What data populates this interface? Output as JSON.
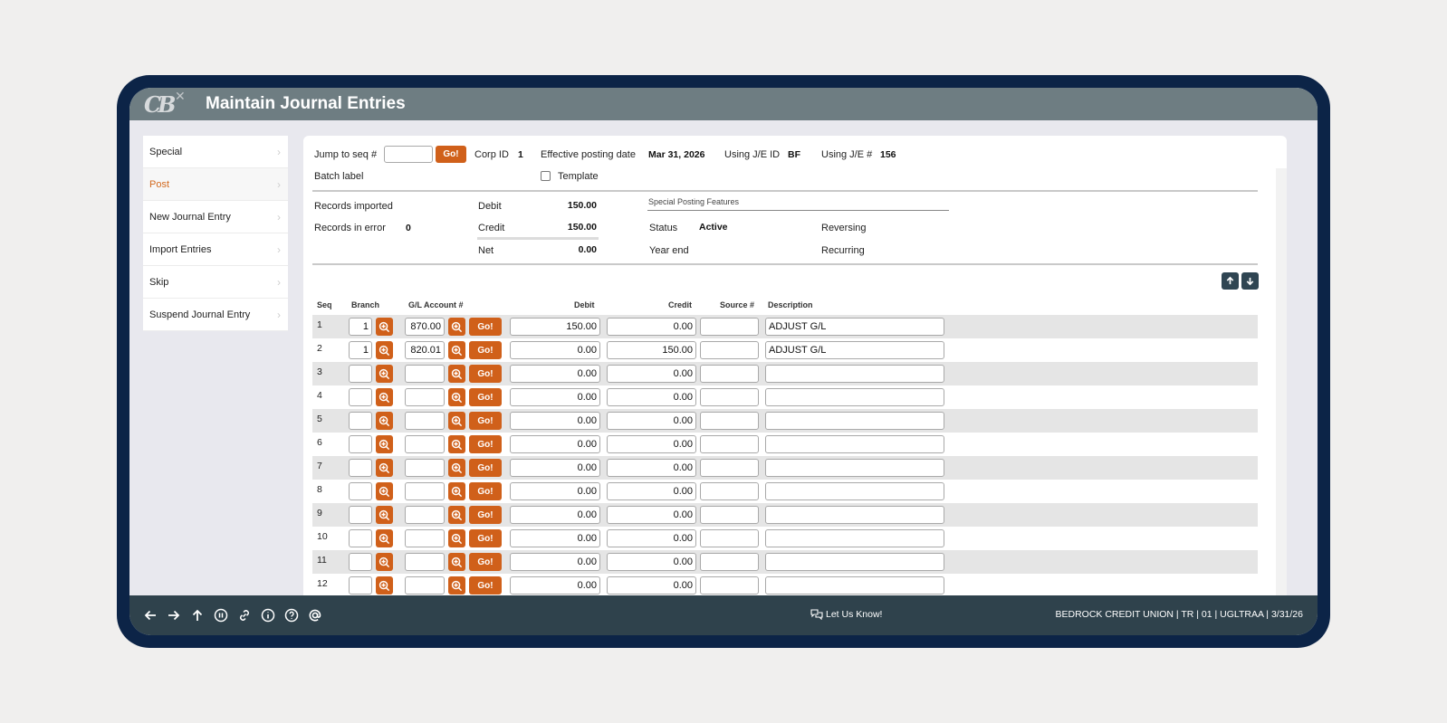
{
  "header": {
    "logo": "CB",
    "title": "Maintain Journal Entries"
  },
  "sidebar": {
    "items": [
      {
        "label": "Special",
        "active": false
      },
      {
        "label": "Post",
        "active": true
      },
      {
        "label": "New Journal Entry",
        "active": false
      },
      {
        "label": "Import Entries",
        "active": false
      },
      {
        "label": "Skip",
        "active": false
      },
      {
        "label": "Suspend Journal Entry",
        "active": false
      }
    ]
  },
  "form": {
    "jump_to_seq_label": "Jump to seq #",
    "jump_to_seq_value": "",
    "go_label": "Go!",
    "corp_id_label": "Corp ID",
    "corp_id_value": "1",
    "effective_posting_date_label": "Effective posting date",
    "effective_posting_date_value": "Mar 31, 2026",
    "using_je_id_label": "Using J/E ID",
    "using_je_id_value": "BF",
    "using_je_num_label": "Using J/E #",
    "using_je_num_value": "156",
    "batch_label_label": "Batch label",
    "template_label": "Template",
    "template_checked": false
  },
  "summary": {
    "records_imported_label": "Records imported",
    "records_imported_value": "",
    "records_in_error_label": "Records in error",
    "records_in_error_value": "0",
    "debit_label": "Debit",
    "debit_value": "150.00",
    "credit_label": "Credit",
    "credit_value": "150.00",
    "net_label": "Net",
    "net_value": "0.00"
  },
  "special_posting": {
    "title": "Special Posting Features",
    "status_label": "Status",
    "status_value": "Active",
    "year_end_label": "Year end",
    "reversing_label": "Reversing",
    "recurring_label": "Recurring"
  },
  "table": {
    "columns": [
      "Seq",
      "Branch",
      "G/L Account #",
      "Debit",
      "Credit",
      "Source #",
      "Description"
    ],
    "go_label": "Go!",
    "rows": [
      {
        "seq": "1",
        "branch": "1",
        "gl_account": "870.00",
        "debit": "150.00",
        "credit": "0.00",
        "source": "",
        "description": "ADJUST G/L"
      },
      {
        "seq": "2",
        "branch": "1",
        "gl_account": "820.01",
        "debit": "0.00",
        "credit": "150.00",
        "source": "",
        "description": "ADJUST G/L"
      },
      {
        "seq": "3",
        "branch": "",
        "gl_account": "",
        "debit": "0.00",
        "credit": "0.00",
        "source": "",
        "description": ""
      },
      {
        "seq": "4",
        "branch": "",
        "gl_account": "",
        "debit": "0.00",
        "credit": "0.00",
        "source": "",
        "description": ""
      },
      {
        "seq": "5",
        "branch": "",
        "gl_account": "",
        "debit": "0.00",
        "credit": "0.00",
        "source": "",
        "description": ""
      },
      {
        "seq": "6",
        "branch": "",
        "gl_account": "",
        "debit": "0.00",
        "credit": "0.00",
        "source": "",
        "description": ""
      },
      {
        "seq": "7",
        "branch": "",
        "gl_account": "",
        "debit": "0.00",
        "credit": "0.00",
        "source": "",
        "description": ""
      },
      {
        "seq": "8",
        "branch": "",
        "gl_account": "",
        "debit": "0.00",
        "credit": "0.00",
        "source": "",
        "description": ""
      },
      {
        "seq": "9",
        "branch": "",
        "gl_account": "",
        "debit": "0.00",
        "credit": "0.00",
        "source": "",
        "description": ""
      },
      {
        "seq": "10",
        "branch": "",
        "gl_account": "",
        "debit": "0.00",
        "credit": "0.00",
        "source": "",
        "description": ""
      },
      {
        "seq": "11",
        "branch": "",
        "gl_account": "",
        "debit": "0.00",
        "credit": "0.00",
        "source": "",
        "description": ""
      },
      {
        "seq": "12",
        "branch": "",
        "gl_account": "",
        "debit": "0.00",
        "credit": "0.00",
        "source": "",
        "description": ""
      }
    ]
  },
  "footer": {
    "icons": [
      "back-arrow-icon",
      "forward-arrow-icon",
      "up-arrow-icon",
      "pause-icon",
      "link-icon",
      "info-icon",
      "help-icon",
      "at-sign-icon"
    ],
    "feedback_label": "Let Us Know!",
    "status": "BEDROCK CREDIT UNION | TR | 01 | UGLTRAA | 3/31/26"
  },
  "colors": {
    "accent": "#d0601a",
    "titlebar": "#6e7d82",
    "frame": "#0c2447",
    "footer": "#2f424c",
    "arrow_buttons": "#2f4552"
  }
}
